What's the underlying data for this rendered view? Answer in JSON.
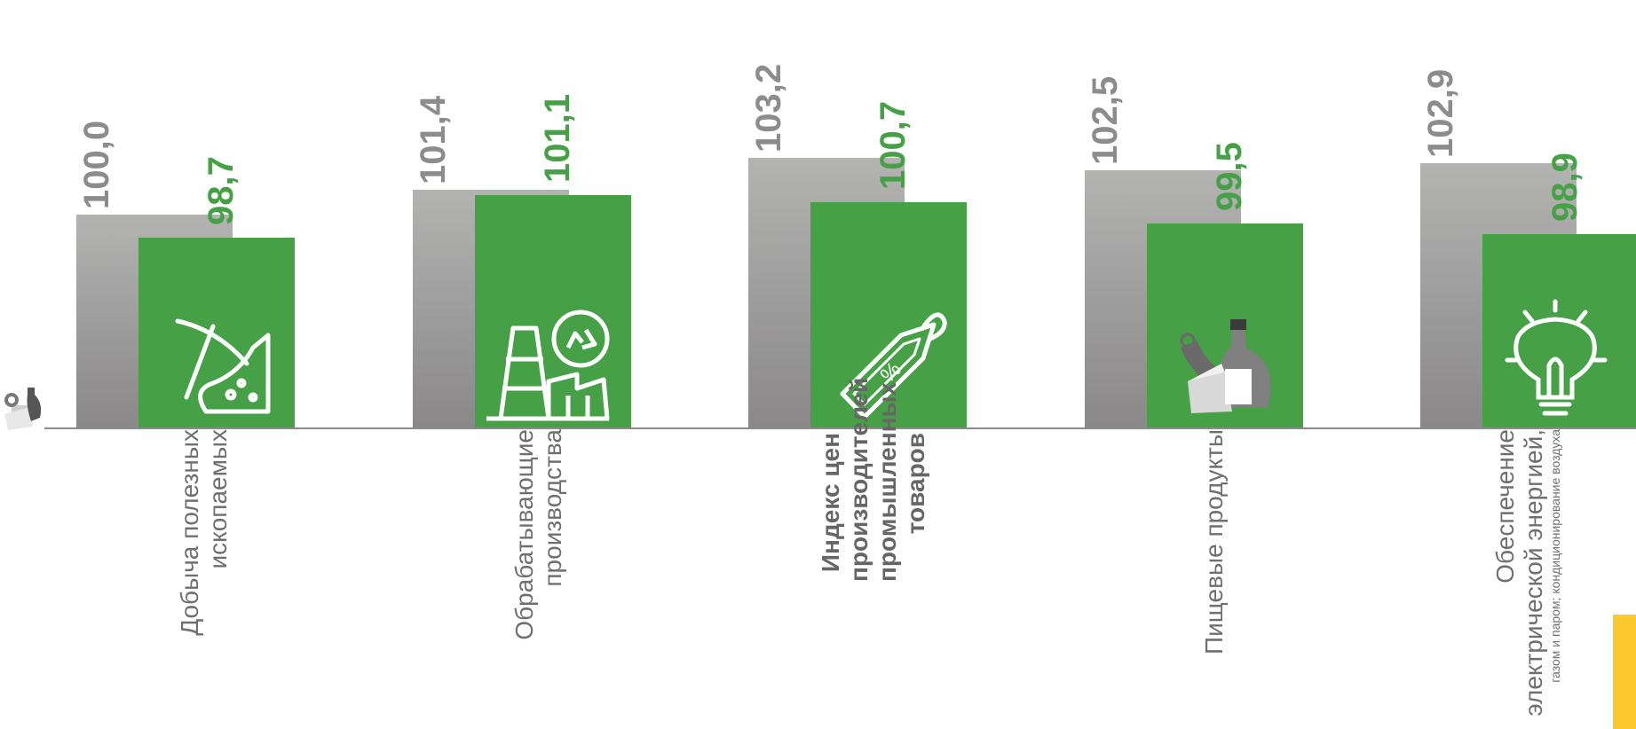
{
  "chart_data": {
    "type": "bar",
    "categories": [
      "Добыча полезных ископаемых",
      "Обрабатывающие производства",
      "Индекс цен производителей промышленных товаров",
      "Пищевые продукты",
      "Обеспечение электрической энергией, газом и паром; кондиционирование воздуха"
    ],
    "series": [
      {
        "values": [
          100.0,
          101.4,
          103.2,
          102.5,
          102.9
        ]
      },
      {
        "values": [
          98.7,
          101.1,
          100.7,
          99.5,
          98.9
        ]
      }
    ],
    "value_labels": [
      [
        "100,0",
        "101,4",
        "103,2",
        "102,5",
        "102,9"
      ],
      [
        "98,7",
        "101,1",
        "100,7",
        "99,5",
        "98,9"
      ]
    ],
    "category_icons": [
      "pickaxe-icon",
      "factory-recycle-icon",
      "price-tag-percent-icon",
      "food-products-icon",
      "lightbulb-icon"
    ],
    "colors": {
      "series_1": "#a3a3a3",
      "series_2": "#46a046",
      "accent": "#fcc72f"
    },
    "legend": "none",
    "grid": false
  },
  "category_labels": [
    {
      "main": "Добыча полезных ископаемых",
      "sub": ""
    },
    {
      "main": "Обрабатывающие производства",
      "sub": ""
    },
    {
      "main": "Индекс цен производителей промышленных товаров",
      "sub": ""
    },
    {
      "main": "Пищевые продукты",
      "sub": ""
    },
    {
      "main": "Обеспечение электрической энергией,",
      "sub": "газом и паром; кондиционирование воздуха"
    }
  ]
}
